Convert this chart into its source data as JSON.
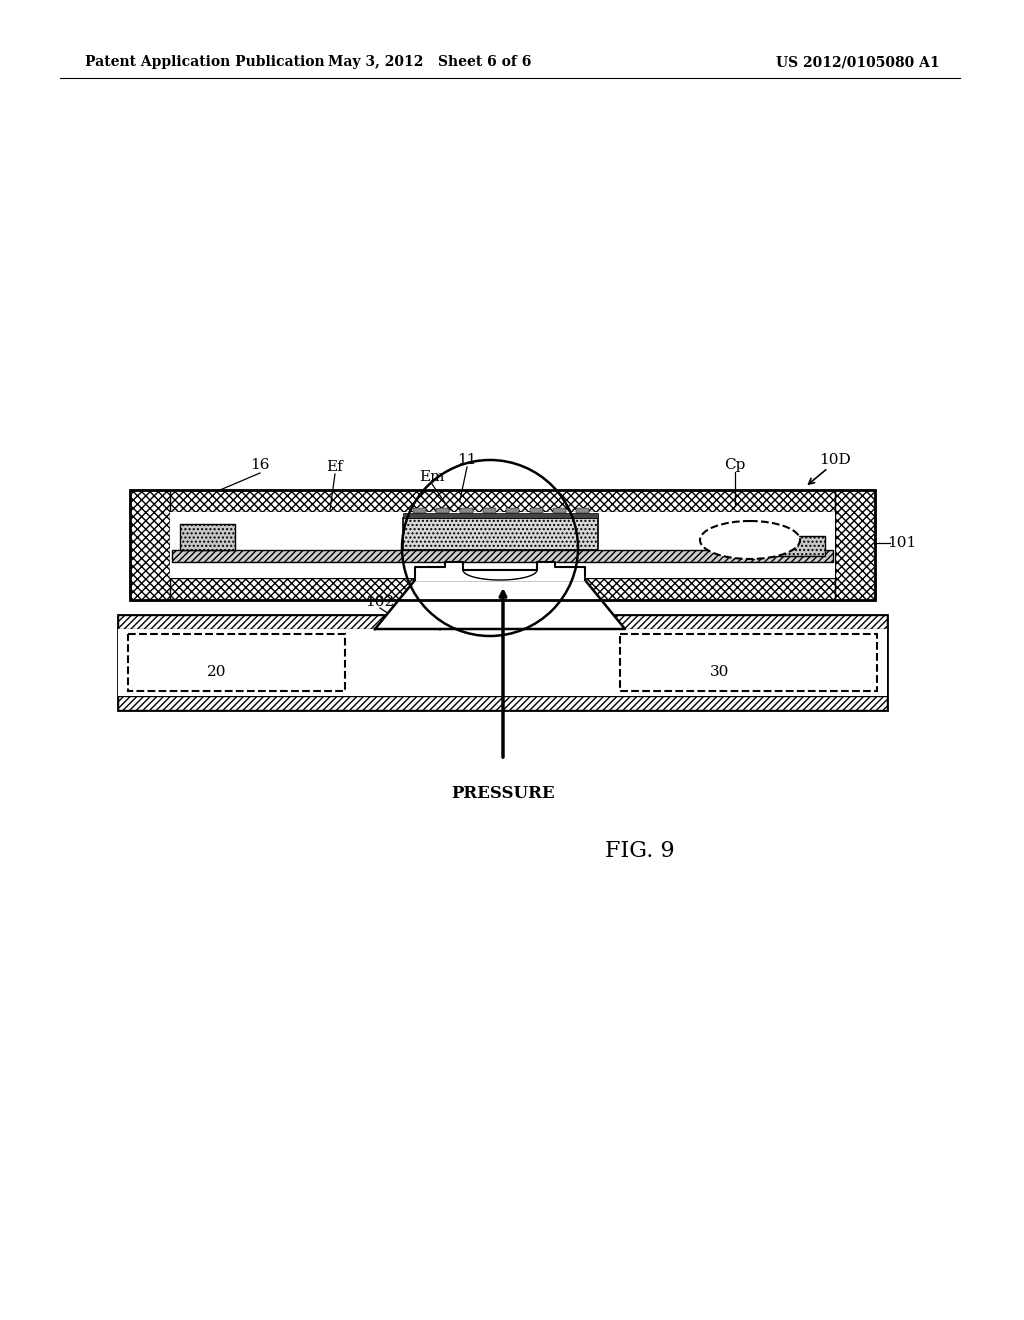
{
  "bg_color": "#ffffff",
  "header_left": "Patent Application Publication",
  "header_mid": "May 3, 2012   Sheet 6 of 6",
  "header_right": "US 2012/0105080 A1",
  "fig_label": "FIG. 9",
  "pressure_label": "PRESSURE"
}
